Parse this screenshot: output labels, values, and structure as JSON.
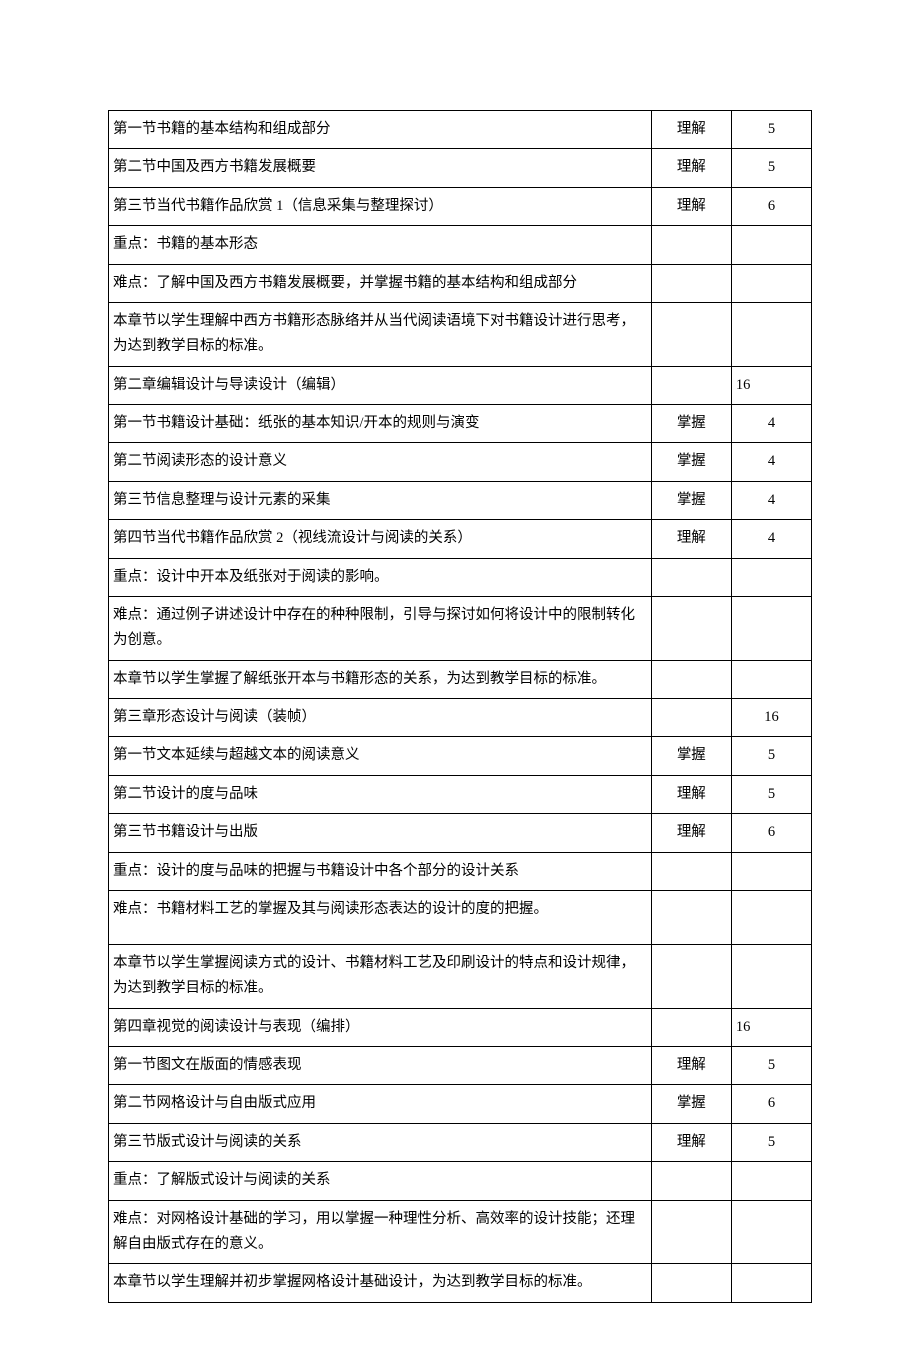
{
  "rows": [
    {
      "c1": "第一节书籍的基本结构和组成部分",
      "c2": "理解",
      "c3": "5",
      "c3_align": "center"
    },
    {
      "c1": "第二节中国及西方书籍发展概要",
      "c2": "理解",
      "c3": "5",
      "c3_align": "center"
    },
    {
      "c1": "第三节当代书籍作品欣赏 1（信息采集与整理探讨）",
      "c2": "理解",
      "c3": "6",
      "c3_align": "center"
    },
    {
      "c1": "重点：书籍的基本形态",
      "c2": "",
      "c3": "",
      "c3_align": "center"
    },
    {
      "c1": "难点：了解中国及西方书籍发展概要，并掌握书籍的基本结构和组成部分",
      "c2": "",
      "c3": "",
      "c3_align": "center"
    },
    {
      "c1": "本章节以学生理解中西方书籍形态脉络并从当代阅读语境下对书籍设计进行思考，为达到教学目标的标准。",
      "c2": "",
      "c3": "",
      "c3_align": "center"
    },
    {
      "c1": "第二章编辑设计与导读设计（编辑）",
      "c2": "",
      "c3": "16",
      "c3_align": "left"
    },
    {
      "c1": "第一节书籍设计基础：纸张的基本知识/开本的规则与演变",
      "c2": "掌握",
      "c2_va": "bottom",
      "c3": "4",
      "c3_align": "center"
    },
    {
      "c1": "第二节阅读形态的设计意义",
      "c2": "掌握",
      "c2_va": "bottom",
      "c3": "4",
      "c3_align": "center"
    },
    {
      "c1": "第三节信息整理与设计元素的采集",
      "c2": "掌握",
      "c2_va": "bottom",
      "c3": "4",
      "c3_align": "center"
    },
    {
      "c1": "第四节当代书籍作品欣赏 2（视线流设计与阅读的关系）",
      "c2": "理解",
      "c2_va": "bottom",
      "c3": "4",
      "c3_align": "center"
    },
    {
      "c1": "重点：设计中开本及纸张对于阅读的影响。",
      "c2": "",
      "c3": "",
      "c3_align": "center"
    },
    {
      "c1": "难点：通过例子讲述设计中存在的种种限制，引导与探讨如何将设计中的限制转化为创意。",
      "c2": "",
      "c3": "",
      "c3_align": "center"
    },
    {
      "c1": "本章节以学生掌握了解纸张开本与书籍形态的关系，为达到教学目标的标准。",
      "c2": "",
      "c3": "",
      "c3_align": "center"
    },
    {
      "c1": "第三章形态设计与阅读（装帧）",
      "c2": "",
      "c3": "16",
      "c3_align": "center"
    },
    {
      "c1": "第一节文本延续与超越文本的阅读意义",
      "c2": "掌握",
      "c2_va": "bottom",
      "c3": "5",
      "c3_align": "center"
    },
    {
      "c1": "第二节设计的度与品味",
      "c2": "理解",
      "c3": "5",
      "c3_align": "center"
    },
    {
      "c1": "第三节书籍设计与出版",
      "c2": "理解",
      "c2_va": "bottom",
      "c3": "6",
      "c3_align": "center"
    },
    {
      "c1": "重点：设计的度与品味的把握与书籍设计中各个部分的设计关系",
      "c2": "",
      "c3": "",
      "c3_align": "center"
    },
    {
      "c1": "难点：书籍材料工艺的掌握及其与阅读形态表达的设计的度的把握。",
      "c2": "",
      "c3": "",
      "c3_align": "center",
      "tall": true
    },
    {
      "c1": "本章节以学生掌握阅读方式的设计、书籍材料工艺及印刷设计的特点和设计规律，为达到教学目标的标准。",
      "c2": "",
      "c3": "",
      "c3_align": "center"
    },
    {
      "c1": "第四章视觉的阅读设计与表现（编排）",
      "c2": "",
      "c3": "16",
      "c3_align": "left"
    },
    {
      "c1": "第一节图文在版面的情感表现",
      "c2": "理解",
      "c3": "5",
      "c3_align": "center"
    },
    {
      "c1": "第二节网格设计与自由版式应用",
      "c2": "掌握",
      "c2_va": "bottom",
      "c3": "6",
      "c3_align": "center"
    },
    {
      "c1": "第三节版式设计与阅读的关系",
      "c2": "理解",
      "c3": "5",
      "c3_align": "center"
    },
    {
      "c1": "重点：了解版式设计与阅读的关系",
      "c2": "",
      "c3": "",
      "c3_align": "center"
    },
    {
      "c1": "难点：对网格设计基础的学习，用以掌握一种理性分析、高效率的设计技能；还理解自由版式存在的意义。",
      "c2": "",
      "c3": "",
      "c3_align": "center"
    },
    {
      "c1": "本章节以学生理解并初步掌握网格设计基础设计，为达到教学目标的标准。",
      "c2": "",
      "c3": "",
      "c3_align": "center"
    }
  ]
}
